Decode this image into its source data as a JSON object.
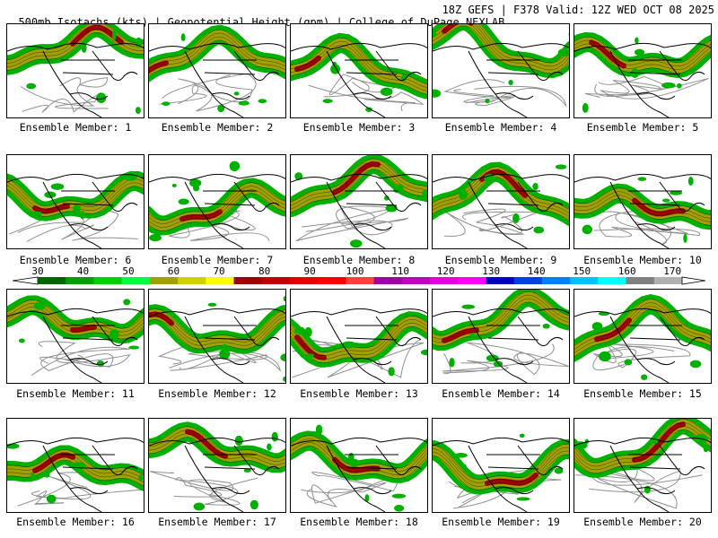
{
  "header": {
    "left": "500mb Isotachs (kts) | Geopotential Height (gpm) | College of DuPage NEXLAB",
    "right": "18Z GEFS | F378 Valid: 12Z WED OCT 08 2025"
  },
  "members": [
    "Ensemble Member: 1",
    "Ensemble Member: 2",
    "Ensemble Member: 3",
    "Ensemble Member: 4",
    "Ensemble Member: 5",
    "Ensemble Member: 6",
    "Ensemble Member: 7",
    "Ensemble Member: 8",
    "Ensemble Member: 9",
    "Ensemble Member: 10",
    "Ensemble Member: 11",
    "Ensemble Member: 12",
    "Ensemble Member: 13",
    "Ensemble Member: 14",
    "Ensemble Member: 15",
    "Ensemble Member: 16",
    "Ensemble Member: 17",
    "Ensemble Member: 18",
    "Ensemble Member: 19",
    "Ensemble Member: 20"
  ],
  "colorbar": {
    "labels": [
      "30",
      "40",
      "50",
      "60",
      "70",
      "80",
      "90",
      "100",
      "110",
      "120",
      "130",
      "140",
      "150",
      "160",
      "170"
    ],
    "colors": [
      "#006400",
      "#00a000",
      "#00d000",
      "#00ff40",
      "#a0a000",
      "#d0d000",
      "#ffff00",
      "#a00000",
      "#c00000",
      "#e00000",
      "#ff0000",
      "#ff4040",
      "#a000a0",
      "#c000c0",
      "#e000e0",
      "#ff00ff",
      "#0000c0",
      "#0040e0",
      "#0080ff",
      "#00c0ff",
      "#00ffff",
      "#808080",
      "#b0b0b0"
    ]
  },
  "map_colors": {
    "jet_low": "#00b000",
    "jet_mid": "#a0a000",
    "jet_high": "#a00000",
    "outline": "#000000",
    "contour_gray": "#909090"
  }
}
